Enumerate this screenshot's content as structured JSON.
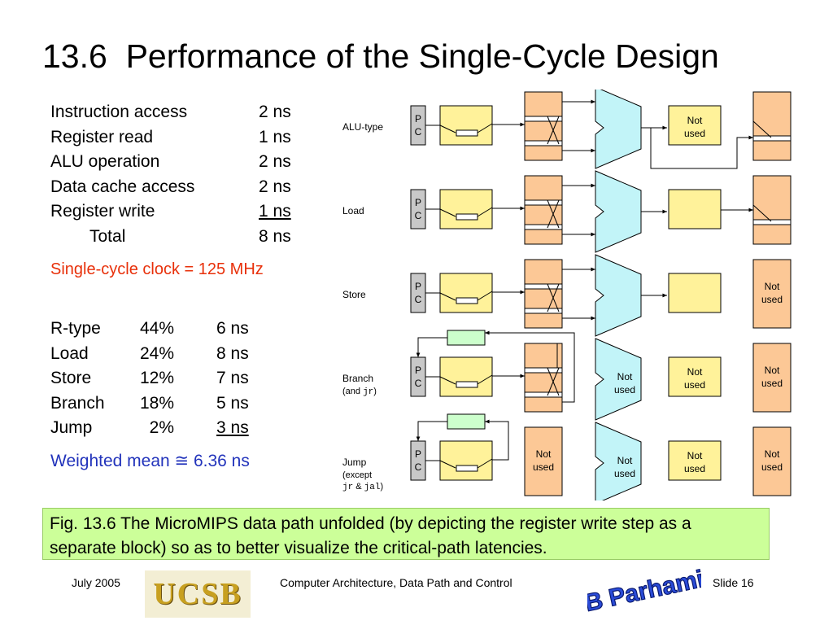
{
  "title": "13.6  Performance of the Single-Cycle Design",
  "timing": [
    {
      "label": "Instruction access",
      "value": "2 ns",
      "underline": false,
      "indent": false
    },
    {
      "label": "Register read",
      "value": "1 ns",
      "underline": false,
      "indent": false
    },
    {
      "label": "ALU operation",
      "value": "2 ns",
      "underline": false,
      "indent": false
    },
    {
      "label": "Data cache access",
      "value": "2 ns",
      "underline": false,
      "indent": false
    },
    {
      "label": "Register write",
      "value": "1 ns",
      "underline": true,
      "indent": false
    },
    {
      "label": "Total",
      "value": "8 ns",
      "underline": false,
      "indent": true
    }
  ],
  "clock": "Single-cycle clock = 125 MHz",
  "mix": [
    {
      "type": "R-type",
      "pct": "44%",
      "time": "6 ns",
      "underline": false
    },
    {
      "type": "Load",
      "pct": "24%",
      "time": "8 ns",
      "underline": false
    },
    {
      "type": "Store",
      "pct": "12%",
      "time": "7 ns",
      "underline": false
    },
    {
      "type": "Branch",
      "pct": "18%",
      "time": "5 ns",
      "underline": false
    },
    {
      "type": "Jump",
      "pct": "2%",
      "time": "3 ns",
      "underline": true
    }
  ],
  "mean": "Weighted mean ≅ 6.36 ns",
  "diagram": {
    "rows": [
      {
        "label": "ALU-type"
      },
      {
        "label": "Load"
      },
      {
        "label": "Store"
      },
      {
        "label": "Branch",
        "sub": "(and ",
        "code1": "jr",
        "sub_end": ")"
      },
      {
        "label": "Jump",
        "sub": "(except",
        "code1": "jr",
        "amp": " & ",
        "code2": "jal",
        "sub_end": ")"
      }
    ],
    "pc_label_p": "P",
    "pc_label_c": "C",
    "not_used_1": "Not",
    "not_used_2": "used",
    "colors": {
      "orange": "#fcc896",
      "yellow": "#fff29a",
      "cyan": "#c2f4f8",
      "green": "#ccffcc",
      "pc": "#c8c8c8"
    }
  },
  "caption": "Fig. 13.6    The MicroMIPS data path unfolded (by depicting the register write step as a separate block) so as to better visualize the critical-path latencies.",
  "footer": {
    "date": "July 2005",
    "logo": "UCSB",
    "course": "Computer Architecture, Data Path and Control",
    "slide": "Slide 16",
    "signature": "B Parhami"
  }
}
